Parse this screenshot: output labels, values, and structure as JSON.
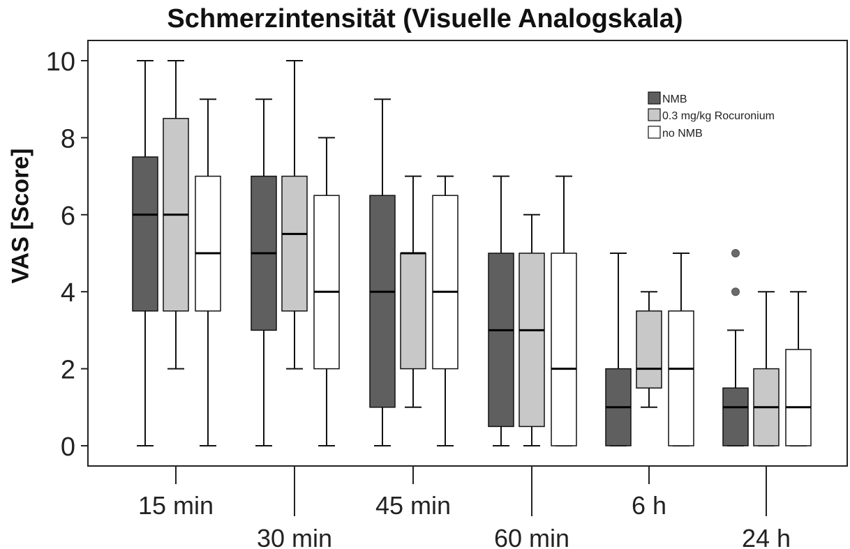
{
  "chart_data": {
    "type": "boxplot",
    "title": "Schmerzintensität (Visuelle Analogskala)",
    "ylabel": "VAS [Score]",
    "xlabel": "",
    "ylim": [
      0,
      10
    ],
    "yticks": [
      0,
      2,
      4,
      6,
      8,
      10
    ],
    "grid": false,
    "legend_position": "top-right",
    "categories": [
      "15 min",
      "30 min",
      "45 min",
      "60 min",
      "6 h",
      "24 h"
    ],
    "series": [
      {
        "name": "NMB",
        "color": "#5f5f5f",
        "boxes": [
          {
            "min": 0,
            "q1": 3.5,
            "median": 6,
            "q3": 7.5,
            "max": 10,
            "outliers": []
          },
          {
            "min": 0,
            "q1": 3,
            "median": 5,
            "q3": 7,
            "max": 9,
            "outliers": []
          },
          {
            "min": 0,
            "q1": 1,
            "median": 4,
            "q3": 6.5,
            "max": 9,
            "outliers": []
          },
          {
            "min": 0,
            "q1": 0.5,
            "median": 3,
            "q3": 5,
            "max": 7,
            "outliers": []
          },
          {
            "min": 0,
            "q1": 0,
            "median": 1,
            "q3": 2,
            "max": 5,
            "outliers": []
          },
          {
            "min": 0,
            "q1": 0,
            "median": 1,
            "q3": 1.5,
            "max": 3,
            "outliers": [
              4,
              5
            ]
          }
        ]
      },
      {
        "name": "0.3 mg/kg Rocuronium",
        "color": "#c8c8c8",
        "boxes": [
          {
            "min": 2,
            "q1": 3.5,
            "median": 6,
            "q3": 8.5,
            "max": 10,
            "outliers": []
          },
          {
            "min": 2,
            "q1": 3.5,
            "median": 5.5,
            "q3": 7,
            "max": 10,
            "outliers": []
          },
          {
            "min": 1,
            "q1": 2,
            "median": 5,
            "q3": 5,
            "max": 7,
            "outliers": []
          },
          {
            "min": 0,
            "q1": 0.5,
            "median": 3,
            "q3": 5,
            "max": 6,
            "outliers": []
          },
          {
            "min": 1,
            "q1": 1.5,
            "median": 2,
            "q3": 3.5,
            "max": 4,
            "outliers": []
          },
          {
            "min": 0,
            "q1": 0,
            "median": 1,
            "q3": 2,
            "max": 4,
            "outliers": []
          }
        ]
      },
      {
        "name": "no NMB",
        "color": "#ffffff",
        "boxes": [
          {
            "min": 0,
            "q1": 3.5,
            "median": 5,
            "q3": 7,
            "max": 9,
            "outliers": []
          },
          {
            "min": 0,
            "q1": 2,
            "median": 4,
            "q3": 6.5,
            "max": 8,
            "outliers": []
          },
          {
            "min": 0,
            "q1": 2,
            "median": 4,
            "q3": 6.5,
            "max": 7,
            "outliers": []
          },
          {
            "min": 0,
            "q1": 0,
            "median": 2,
            "q3": 5,
            "max": 7,
            "outliers": []
          },
          {
            "min": 0,
            "q1": 0,
            "median": 2,
            "q3": 3.5,
            "max": 5,
            "outliers": []
          },
          {
            "min": 0,
            "q1": 0,
            "median": 1,
            "q3": 2.5,
            "max": 4,
            "outliers": []
          }
        ]
      }
    ]
  }
}
